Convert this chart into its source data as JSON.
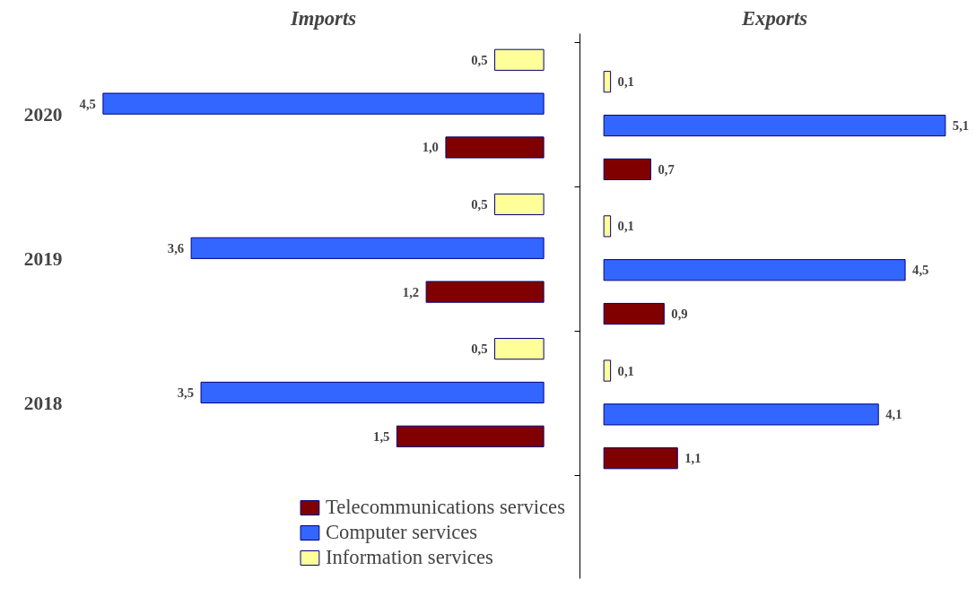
{
  "chart_data": [
    {
      "type": "bar",
      "orientation": "horizontal",
      "title": "Imports",
      "categories": [
        "2020",
        "2019",
        "2018"
      ],
      "tick_labels": "y",
      "legend": "bottom right",
      "series": [
        {
          "name": "Information services",
          "color": "#ffff99",
          "values": [
            0.5,
            0.5,
            0.5
          ],
          "value_labels": [
            "0,5",
            "0,5",
            "0,5"
          ]
        },
        {
          "name": "Computer services",
          "color": "#3366ff",
          "values": [
            4.5,
            3.6,
            3.5
          ],
          "value_labels": [
            "4,5",
            "3,6",
            "3,5"
          ]
        },
        {
          "name": "Telecommunications services",
          "color": "#800000",
          "values": [
            1.0,
            1.2,
            1.5
          ],
          "value_labels": [
            "1,0",
            "1,2",
            "1,5"
          ]
        }
      ]
    },
    {
      "type": "bar",
      "orientation": "horizontal",
      "title": "Exports",
      "categories": [
        "2020",
        "2019",
        "2018"
      ],
      "tick_labels": false,
      "series": [
        {
          "color": "#ffff99",
          "values": [
            0.1,
            0.1,
            0.1
          ],
          "value_labels": [
            "0,1",
            "0,1",
            "0,1"
          ]
        },
        {
          "color": "#3366ff",
          "values": [
            5.1,
            4.5,
            4.1
          ],
          "value_labels": [
            "5,1",
            "4,5",
            "4,1"
          ]
        },
        {
          "color": "#800000",
          "values": [
            0.7,
            0.9,
            1.1
          ],
          "value_labels": [
            "0,7",
            "0,9",
            "1,1"
          ]
        }
      ]
    }
  ]
}
